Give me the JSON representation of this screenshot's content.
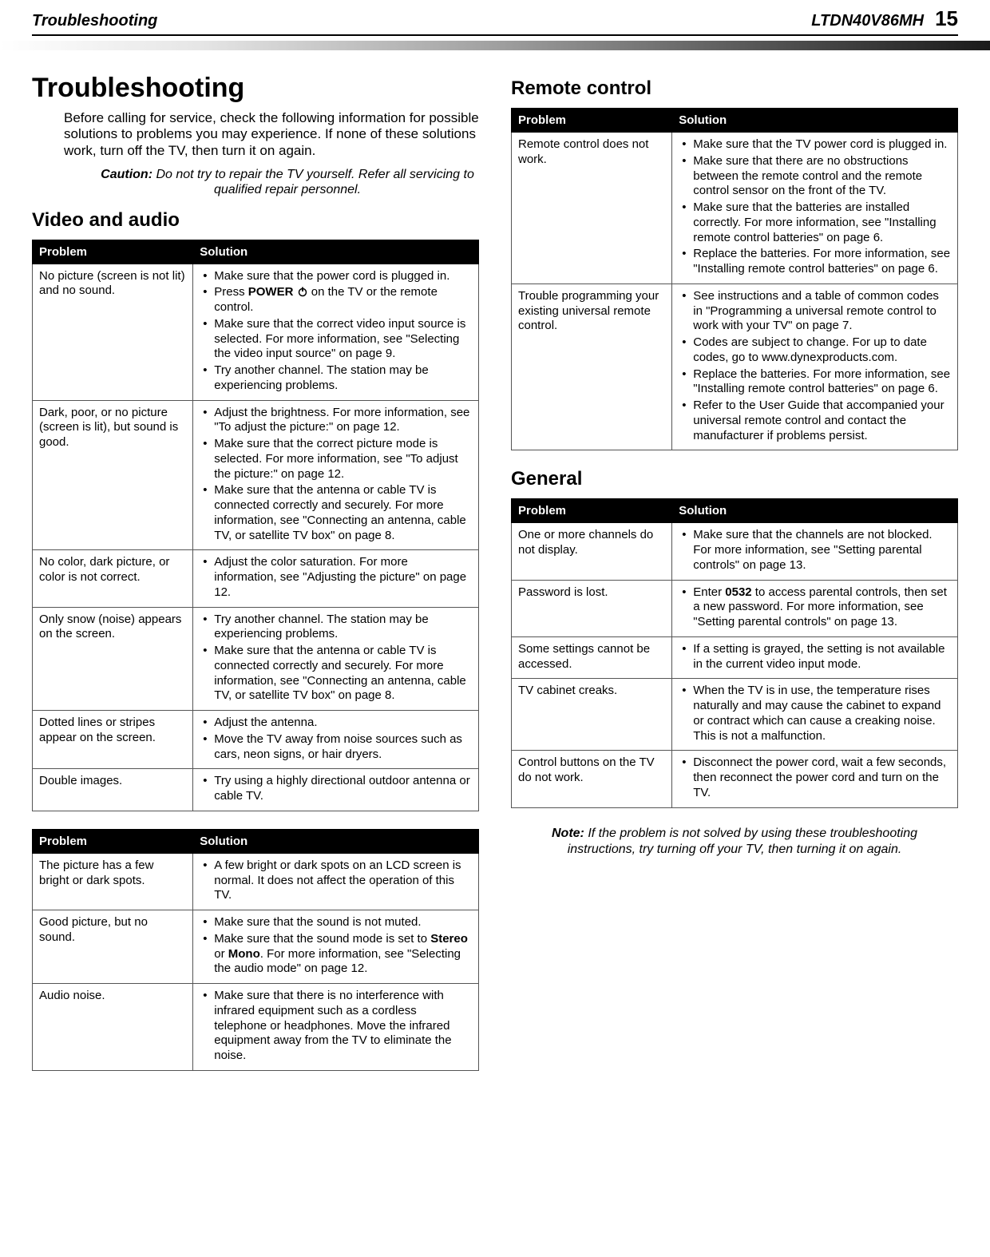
{
  "header": {
    "left_title": "Troubleshooting",
    "model": "LTDN40V86MH",
    "page_number": "15"
  },
  "main_title": "Troubleshooting",
  "intro_text": "Before calling for service, check the following information for possible solutions to problems you may experience. If none of these solutions work, turn off the TV, then turn it on again.",
  "caution": {
    "label": "Caution:",
    "text": " Do not try to repair the TV yourself. Refer all servicing to qualified repair personnel."
  },
  "sections": {
    "video_audio_title": "Video and audio",
    "remote_title": "Remote control",
    "general_title": "General"
  },
  "col_headers": {
    "problem": "Problem",
    "solution": "Solution"
  },
  "strings": {
    "power_label": "POWER",
    "stereo": "Stereo",
    "mono": "Mono",
    "code_0532": "0532"
  },
  "va_table1": {
    "rows": [
      {
        "problem": "No picture (screen is not lit) and no sound.",
        "solutions": [
          {
            "t": "Make sure that the power cord is plugged in."
          },
          {
            "t": "on the TV or the remote control.",
            "pre": "Press ",
            "bold": "POWER",
            "power_icon": true
          },
          {
            "t": "Make sure that the correct video input source is selected. For more information, see \"Selecting the video input source\" on page 9."
          },
          {
            "t": "Try another channel. The station may be experiencing problems."
          }
        ]
      },
      {
        "problem": "Dark, poor, or no picture (screen is lit), but sound is good.",
        "solutions": [
          {
            "t": "Adjust the brightness. For more information, see \"To adjust the picture:\" on page 12."
          },
          {
            "t": "Make sure that the correct picture mode is selected. For more information, see \"To adjust the picture:\" on page 12."
          },
          {
            "t": "Make sure that the antenna or cable TV is connected correctly and securely. For more information, see \"Connecting an antenna, cable TV, or satellite TV box\" on page 8."
          }
        ]
      },
      {
        "problem": "No color, dark picture, or color is not correct.",
        "solutions": [
          {
            "t": "Adjust the color saturation. For more information, see \"Adjusting the picture\" on page 12."
          }
        ]
      },
      {
        "problem": "Only snow (noise) appears on the screen.",
        "solutions": [
          {
            "t": "Try another channel. The station may be experiencing problems."
          },
          {
            "t": "Make sure that the antenna or cable TV is connected correctly and securely. For more information, see \"Connecting an antenna, cable TV, or satellite TV box\" on page 8."
          }
        ]
      },
      {
        "problem": "Dotted lines or stripes appear on the screen.",
        "solutions": [
          {
            "t": "Adjust the antenna."
          },
          {
            "t": "Move the TV away from noise sources such as cars, neon signs, or hair dryers."
          }
        ]
      },
      {
        "problem": "Double images.",
        "solutions": [
          {
            "t": "Try using a highly directional outdoor antenna or cable TV."
          }
        ]
      }
    ]
  },
  "va_table2": {
    "rows": [
      {
        "problem": "The picture has a few bright or dark spots.",
        "solutions": [
          {
            "t": "A few bright or dark spots on an LCD screen is normal. It does not affect the operation of this TV."
          }
        ]
      },
      {
        "problem": "Good picture, but no sound.",
        "solutions": [
          {
            "t": "Make sure that the sound is not muted."
          },
          {
            "t": ". For more information, see \"Selecting the audio mode\" on page 12.",
            "pre": "Make sure that the sound mode is set to ",
            "bold_stereo_mono": true
          }
        ]
      },
      {
        "problem": "Audio noise.",
        "solutions": [
          {
            "t": "Make sure that there is no interference with infrared equipment such as a cordless telephone or headphones. Move the infrared equipment away from the TV to eliminate the noise."
          }
        ]
      }
    ]
  },
  "remote_table": {
    "rows": [
      {
        "problem": "Remote control does not work.",
        "solutions": [
          {
            "t": "Make sure that the TV power cord is plugged in."
          },
          {
            "t": "Make sure that there are no obstructions between the remote control and the remote control sensor on the front of the TV."
          },
          {
            "t": "Make sure that the batteries are installed correctly. For more information, see \"Installing remote control batteries\" on page 6."
          },
          {
            "t": "Replace the batteries. For more information, see \"Installing remote control batteries\" on page 6."
          }
        ]
      },
      {
        "problem": "Trouble programming your existing universal remote control.",
        "solutions": [
          {
            "t": "See instructions and a table of common codes in \"Programming a universal remote control to work with your TV\" on page  7."
          },
          {
            "t": "Codes are subject to change. For up to date codes, go to www.dynexproducts.com."
          },
          {
            "t": "Replace the batteries. For more information, see \"Installing remote control batteries\" on page  6."
          },
          {
            "t": "Refer to the User Guide that accompanied your universal remote control and contact the manufacturer if problems persist."
          }
        ]
      }
    ]
  },
  "general_table": {
    "rows": [
      {
        "problem": "One or more channels do not display.",
        "solutions": [
          {
            "t": "Make sure that the channels are not blocked. For more information, see \"Setting parental controls\" on page 13."
          }
        ]
      },
      {
        "problem": "Password is lost.",
        "solutions": [
          {
            "t": " to access parental controls, then set a new password. For more information, see \"Setting parental controls\" on page 13.",
            "pre": "Enter ",
            "bold_code": true
          }
        ]
      },
      {
        "problem": "Some settings cannot be accessed.",
        "solutions": [
          {
            "t": "If a setting is grayed, the setting is not available in the current video input mode."
          }
        ]
      },
      {
        "problem": "TV cabinet creaks.",
        "solutions": [
          {
            "t": "When the TV is in use, the temperature rises naturally and may cause the cabinet to expand or contract which can cause a creaking noise. This is not a malfunction."
          }
        ]
      },
      {
        "problem": "Control buttons on the TV do not work.",
        "solutions": [
          {
            "t": "Disconnect the power cord, wait a few seconds, then reconnect the power cord and turn on the TV."
          }
        ]
      }
    ]
  },
  "note": {
    "label": "Note:",
    "text": " If the problem is not solved by using these troubleshooting instructions, try turning off your TV, then turning it on again."
  },
  "colors": {
    "header_bg": "#000000",
    "header_fg": "#ffffff",
    "border": "#555555",
    "text": "#000000"
  }
}
